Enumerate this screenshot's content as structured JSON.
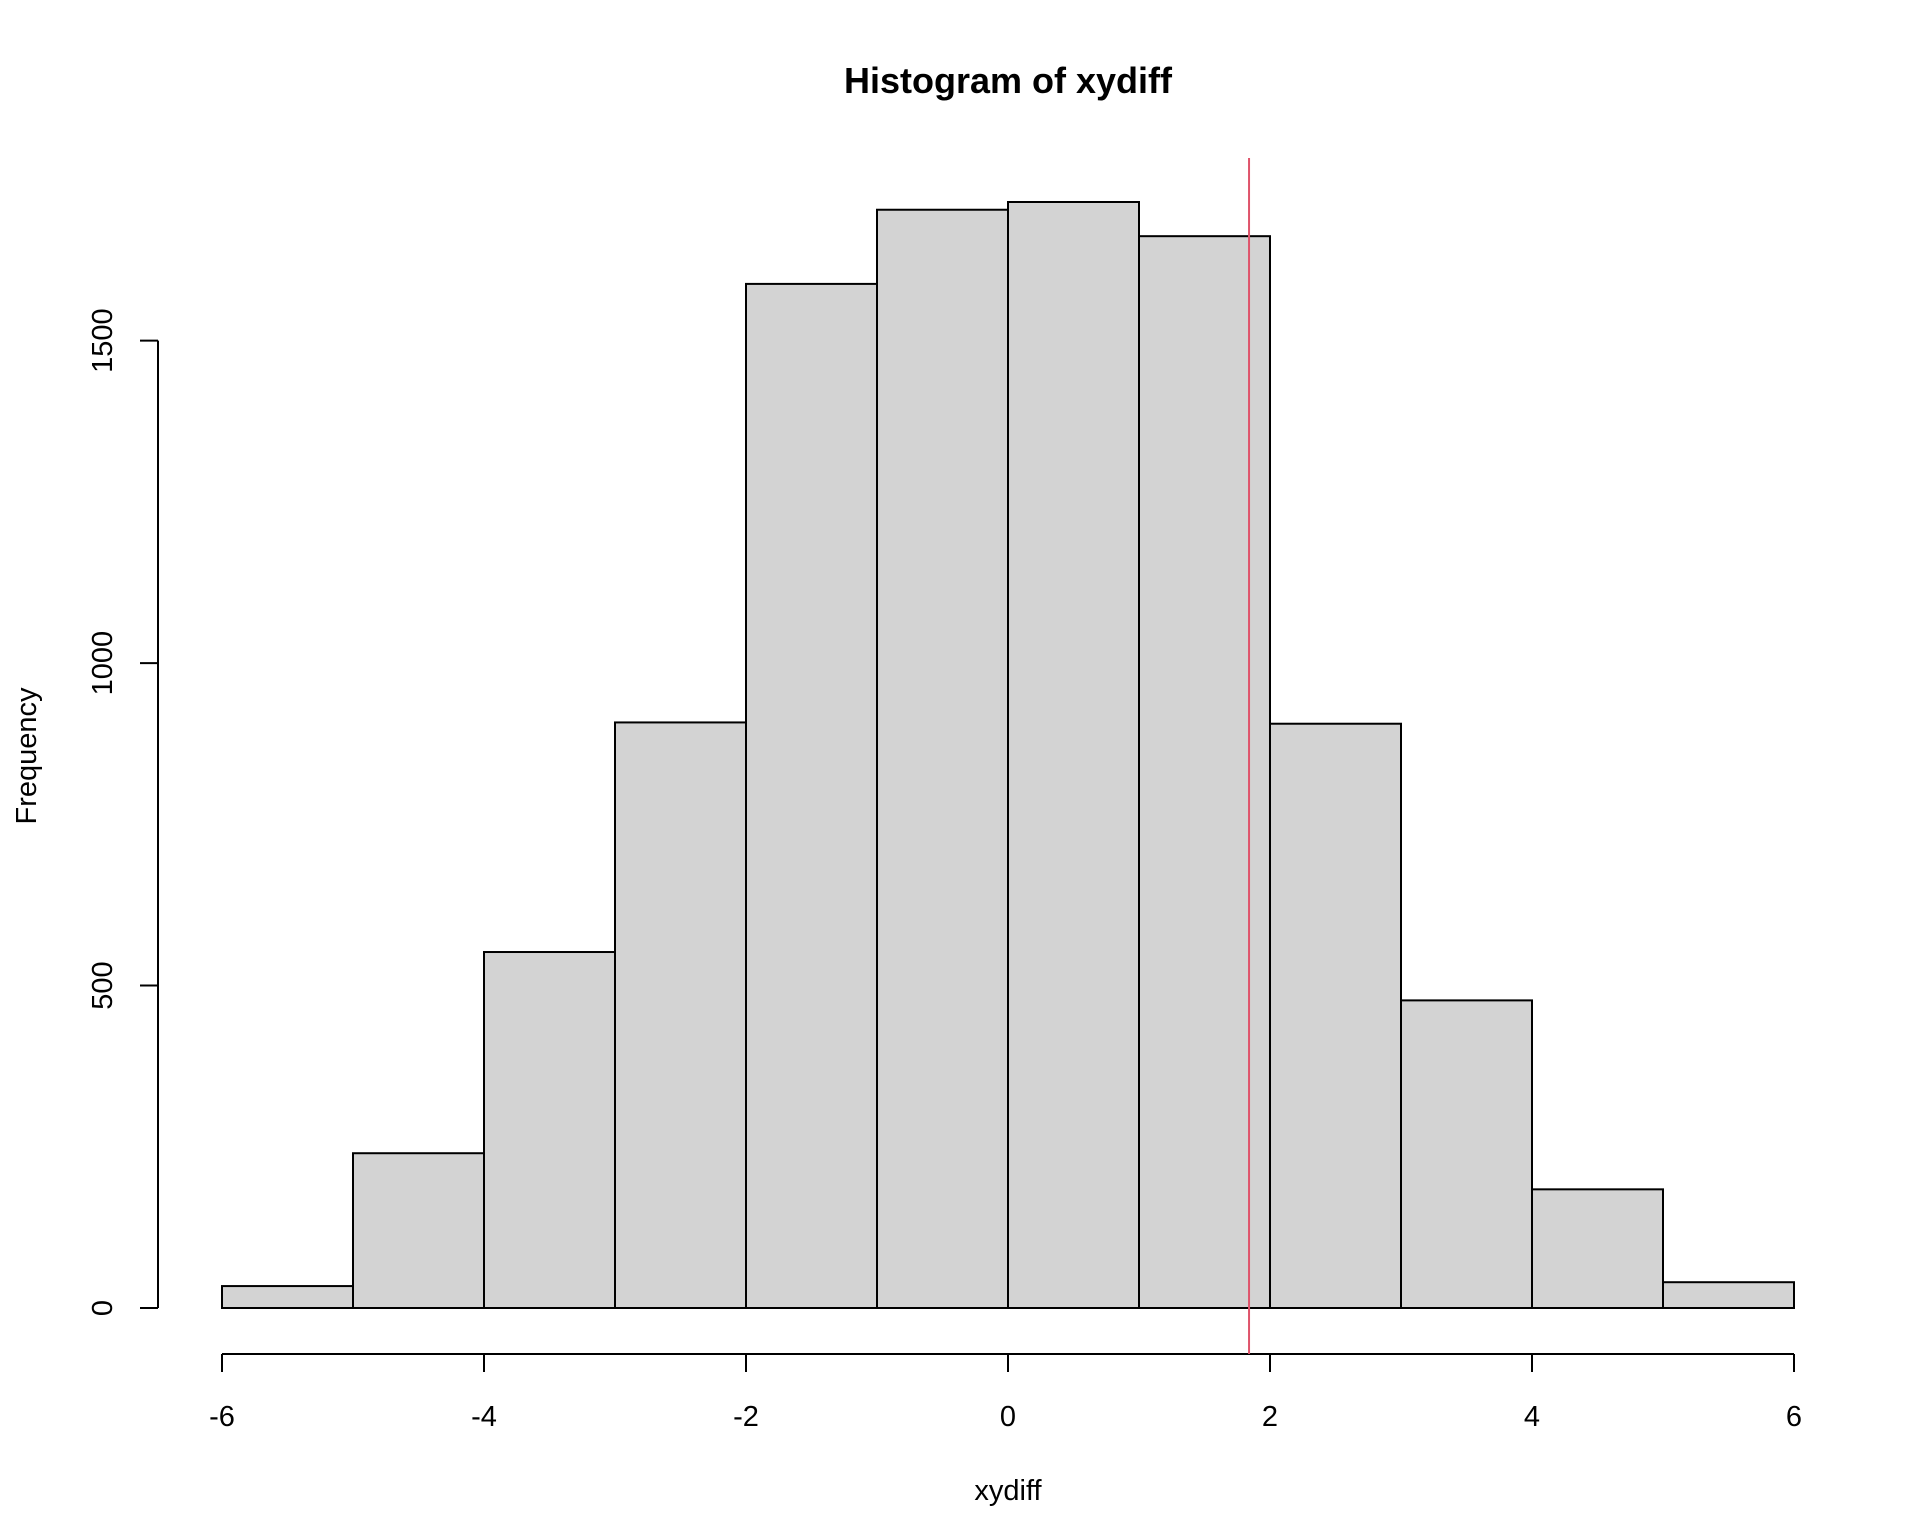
{
  "chart_data": {
    "type": "bar",
    "title": "Histogram of xydiff",
    "xlabel": "xydiff",
    "ylabel": "Frequency",
    "bin_edges": [
      -6,
      -5,
      -4,
      -3,
      -2,
      -1,
      0,
      1,
      2,
      3,
      4,
      5,
      6
    ],
    "values": [
      34,
      240,
      552,
      908,
      1588,
      1703,
      1715,
      1662,
      906,
      477,
      184,
      40
    ],
    "xlim": [
      -6,
      6
    ],
    "ylim": [
      0,
      1715
    ],
    "x_ticks": [
      -6,
      -4,
      -2,
      0,
      2,
      4,
      6
    ],
    "x_tick_labels": [
      "-6",
      "-4",
      "-2",
      "0",
      "2",
      "4",
      "6"
    ],
    "y_ticks": [
      0,
      500,
      1000,
      1500
    ],
    "y_tick_labels": [
      "0",
      "500",
      "1000",
      "1500"
    ],
    "vline": {
      "x": 1.84,
      "color": "#DF536B"
    },
    "bar_fill": "#D3D3D3",
    "bar_stroke": "#000000",
    "grid": false
  }
}
